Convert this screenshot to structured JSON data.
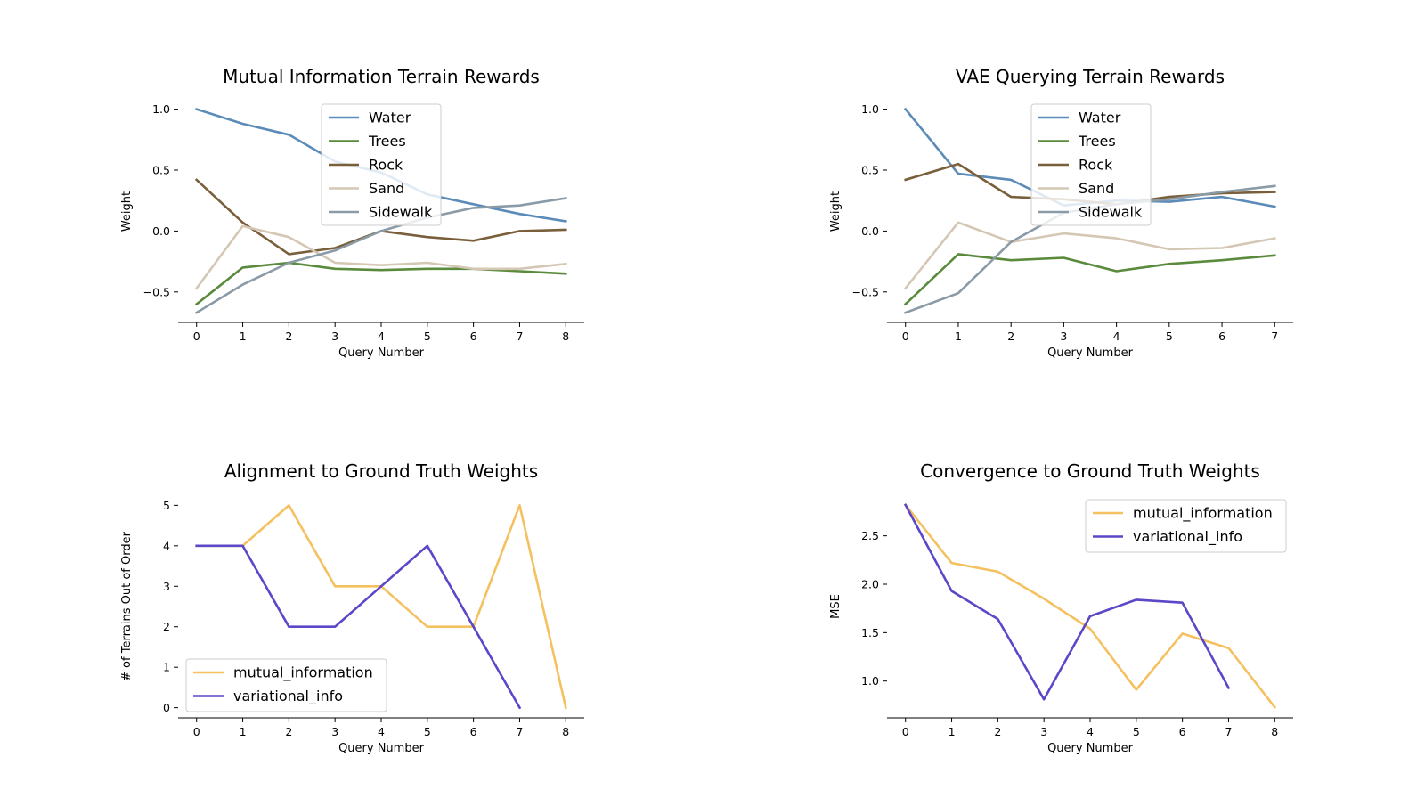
{
  "chart_data": [
    {
      "type": "line",
      "title": "Mutual Information Terrain Rewards",
      "xlabel": "Query Number",
      "ylabel": "Weight",
      "x": [
        0,
        1,
        2,
        3,
        4,
        5,
        6,
        7,
        8
      ],
      "xlim": [
        -0.4,
        8.4
      ],
      "ylim": [
        -0.75,
        1.07
      ],
      "yticks": [
        -0.5,
        0.0,
        0.5,
        1.0
      ],
      "ytick_labels": [
        "−0.5",
        "0.0",
        "0.5",
        "1.0"
      ],
      "legend_position": "upper-center",
      "series": [
        {
          "name": "Water",
          "color": "#5b8bb8",
          "values": [
            1.0,
            0.88,
            0.79,
            0.57,
            0.48,
            0.3,
            0.22,
            0.14,
            0.08
          ]
        },
        {
          "name": "Trees",
          "color": "#5a8a3c",
          "values": [
            -0.6,
            -0.3,
            -0.26,
            -0.31,
            -0.32,
            -0.31,
            -0.31,
            -0.33,
            -0.35
          ]
        },
        {
          "name": "Rock",
          "color": "#7a5f3c",
          "values": [
            0.42,
            0.07,
            -0.19,
            -0.14,
            0.0,
            -0.05,
            -0.08,
            0.0,
            0.01
          ]
        },
        {
          "name": "Sand",
          "color": "#d4c8b4",
          "values": [
            -0.47,
            0.04,
            -0.05,
            -0.26,
            -0.28,
            -0.26,
            -0.31,
            -0.31,
            -0.27
          ]
        },
        {
          "name": "Sidewalk",
          "color": "#8a9aa6",
          "values": [
            -0.67,
            -0.44,
            -0.26,
            -0.16,
            0.0,
            0.11,
            0.19,
            0.21,
            0.27
          ]
        }
      ]
    },
    {
      "type": "line",
      "title": "VAE Querying Terrain Rewards",
      "xlabel": "Query Number",
      "ylabel": "Weight",
      "x": [
        0,
        1,
        2,
        3,
        4,
        5,
        6,
        7
      ],
      "xlim": [
        -0.35,
        7.35
      ],
      "ylim": [
        -0.75,
        1.07
      ],
      "yticks": [
        -0.5,
        0.0,
        0.5,
        1.0
      ],
      "ytick_labels": [
        "−0.5",
        "0.0",
        "0.5",
        "1.0"
      ],
      "legend_position": "upper-center",
      "series": [
        {
          "name": "Water",
          "color": "#5b8bb8",
          "values": [
            1.0,
            0.47,
            0.42,
            0.21,
            0.25,
            0.24,
            0.28,
            0.2
          ]
        },
        {
          "name": "Trees",
          "color": "#5a8a3c",
          "values": [
            -0.6,
            -0.19,
            -0.24,
            -0.22,
            -0.33,
            -0.27,
            -0.24,
            -0.2
          ]
        },
        {
          "name": "Rock",
          "color": "#7a5f3c",
          "values": [
            0.42,
            0.55,
            0.28,
            0.26,
            0.22,
            0.28,
            0.31,
            0.32
          ]
        },
        {
          "name": "Sand",
          "color": "#d4c8b4",
          "values": [
            -0.47,
            0.07,
            -0.09,
            -0.02,
            -0.06,
            -0.15,
            -0.14,
            -0.06
          ]
        },
        {
          "name": "Sidewalk",
          "color": "#8a9aa6",
          "values": [
            -0.67,
            -0.51,
            -0.09,
            0.15,
            0.22,
            0.26,
            0.32,
            0.37
          ]
        }
      ]
    },
    {
      "type": "line",
      "title": "Alignment to Ground Truth Weights",
      "xlabel": "Query Number",
      "ylabel": "# of Terrains Out of Order",
      "x": [
        0,
        1,
        2,
        3,
        4,
        5,
        6,
        7,
        8
      ],
      "xlim": [
        -0.4,
        8.4
      ],
      "ylim": [
        -0.25,
        5.25
      ],
      "yticks": [
        0,
        1,
        2,
        3,
        4,
        5
      ],
      "ytick_labels": [
        "0",
        "1",
        "2",
        "3",
        "4",
        "5"
      ],
      "legend_position": "lower-left",
      "series": [
        {
          "name": "mutual_information",
          "color": "#f5c060",
          "values": [
            4,
            4,
            5,
            3,
            3,
            2,
            2,
            5,
            0
          ]
        },
        {
          "name": "variational_info",
          "color": "#5b47c8",
          "values": [
            4,
            4,
            2,
            2,
            3,
            4,
            2,
            0,
            null
          ]
        }
      ]
    },
    {
      "type": "line",
      "title": "Convergence to Ground Truth Weights",
      "xlabel": "Query Number",
      "ylabel": "MSE",
      "x": [
        0,
        1,
        2,
        3,
        4,
        5,
        6,
        7,
        8
      ],
      "xlim": [
        -0.4,
        8.4
      ],
      "ylim": [
        0.62,
        2.92
      ],
      "yticks": [
        1.0,
        1.5,
        2.0,
        2.5
      ],
      "ytick_labels": [
        "1.0",
        "1.5",
        "2.0",
        "2.5"
      ],
      "legend_position": "upper-right",
      "series": [
        {
          "name": "mutual_information",
          "color": "#f5c060",
          "values": [
            2.82,
            2.22,
            2.13,
            1.85,
            1.54,
            0.91,
            1.49,
            1.34,
            0.73
          ]
        },
        {
          "name": "variational_info",
          "color": "#5b47c8",
          "values": [
            2.82,
            1.93,
            1.64,
            0.81,
            1.67,
            1.84,
            1.81,
            0.93,
            null
          ]
        }
      ]
    }
  ]
}
